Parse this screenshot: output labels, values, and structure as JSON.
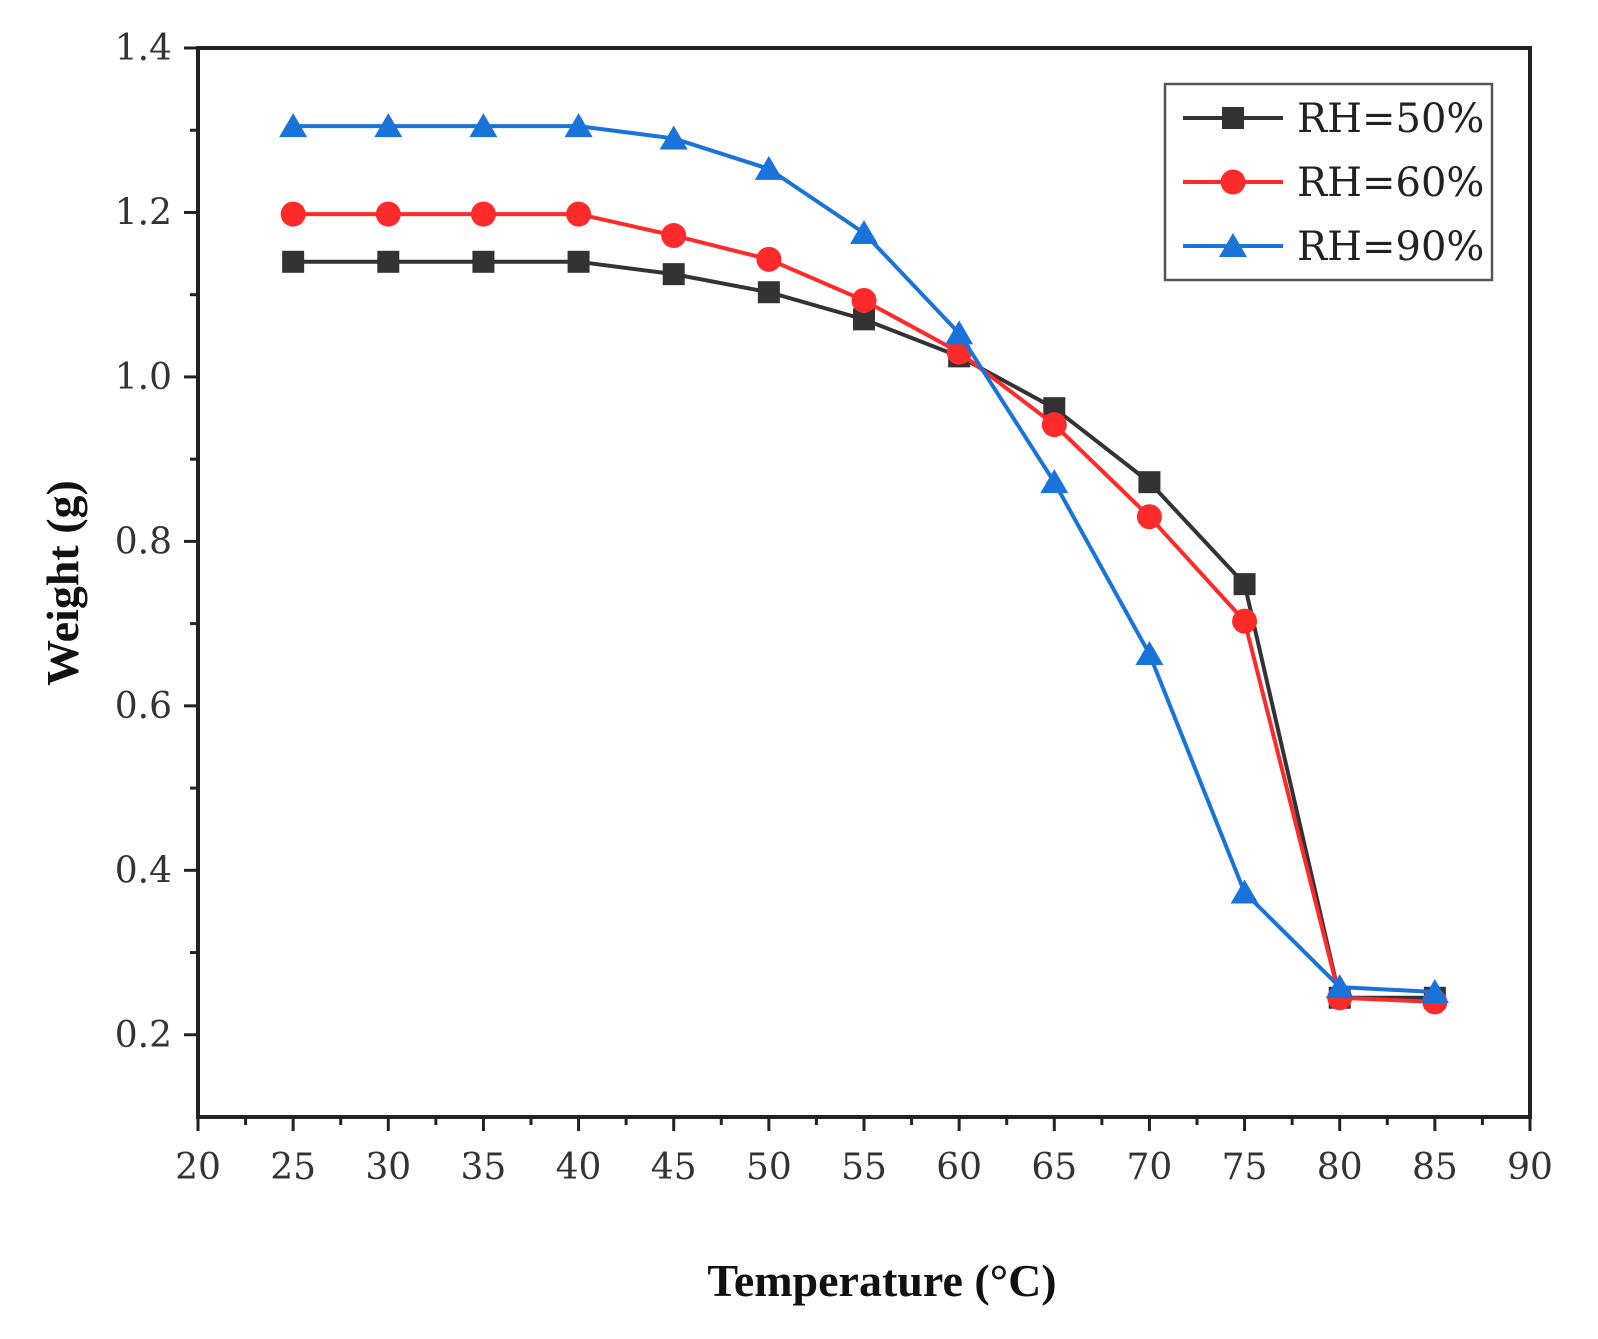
{
  "chart_data": {
    "type": "line",
    "title": "",
    "xlabel": "Temperature (°C)",
    "ylabel": "Weight (g)",
    "xlim": [
      20,
      90
    ],
    "ylim": [
      0.1,
      1.4
    ],
    "x_ticks": [
      20,
      25,
      30,
      35,
      40,
      45,
      50,
      55,
      60,
      65,
      70,
      75,
      80,
      85,
      90
    ],
    "x_tick_labels": [
      "20",
      "25",
      "30",
      "35",
      "40",
      "45",
      "50",
      "55",
      "60",
      "65",
      "70",
      "75",
      "80",
      "85",
      "90"
    ],
    "y_ticks": [
      0.2,
      0.4,
      0.6,
      0.8,
      1.0,
      1.2,
      1.4
    ],
    "y_tick_labels": [
      "0.2",
      "0.4",
      "0.6",
      "0.8",
      "1.0",
      "1.2",
      "1.4"
    ],
    "grid": false,
    "legend_position": "top-right",
    "x": [
      25,
      30,
      35,
      40,
      45,
      50,
      55,
      60,
      65,
      70,
      75,
      80,
      85
    ],
    "series": [
      {
        "name": "RH=50%",
        "color": "#333333",
        "marker": "square",
        "values": [
          1.14,
          1.14,
          1.14,
          1.14,
          1.125,
          1.103,
          1.07,
          1.025,
          0.962,
          0.872,
          0.748,
          0.245,
          0.245
        ]
      },
      {
        "name": "RH=60%",
        "color": "#ff2a2a",
        "marker": "circle",
        "values": [
          1.198,
          1.198,
          1.198,
          1.198,
          1.172,
          1.143,
          1.093,
          1.03,
          0.942,
          0.83,
          0.703,
          0.245,
          0.24
        ]
      },
      {
        "name": "RH=90%",
        "color": "#1a73d9",
        "marker": "triangle",
        "values": [
          1.305,
          1.305,
          1.305,
          1.305,
          1.29,
          1.253,
          1.175,
          1.053,
          0.872,
          0.663,
          0.373,
          0.258,
          0.252
        ]
      }
    ]
  }
}
